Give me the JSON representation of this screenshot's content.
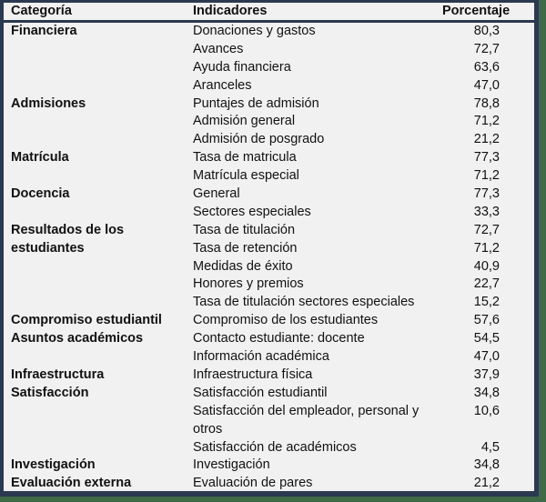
{
  "table": {
    "headers": {
      "category": "Categoría",
      "indicator": "Indicadores",
      "percentage": "Porcentaje"
    },
    "rows": [
      {
        "category": "Financiera",
        "indicator": "Donaciones y gastos",
        "percentage": "80,3"
      },
      {
        "category": "",
        "indicator": "Avances",
        "percentage": "72,7"
      },
      {
        "category": "",
        "indicator": "Ayuda financiera",
        "percentage": "63,6"
      },
      {
        "category": "",
        "indicator": "Aranceles",
        "percentage": "47,0"
      },
      {
        "category": "Admisiones",
        "indicator": "Puntajes de admisión",
        "percentage": "78,8"
      },
      {
        "category": "",
        "indicator": "Admisión general",
        "percentage": "71,2"
      },
      {
        "category": "",
        "indicator": "Admisión de posgrado",
        "percentage": "21,2"
      },
      {
        "category": "Matrícula",
        "indicator": "Tasa de matricula",
        "percentage": "77,3"
      },
      {
        "category": "",
        "indicator": "Matrícula especial",
        "percentage": "71,2"
      },
      {
        "category": "Docencia",
        "indicator": "General",
        "percentage": "77,3"
      },
      {
        "category": "",
        "indicator": "Sectores especiales",
        "percentage": "33,3"
      },
      {
        "category": "Resultados de los",
        "indicator": "Tasa de titulación",
        "percentage": "72,7"
      },
      {
        "category": "estudiantes",
        "indicator": "Tasa de retención",
        "percentage": "71,2"
      },
      {
        "category": "",
        "indicator": "Medidas de éxito",
        "percentage": "40,9"
      },
      {
        "category": "",
        "indicator": "Honores y premios",
        "percentage": "22,7"
      },
      {
        "category": "",
        "indicator": "Tasa de titulación sectores especiales",
        "percentage": "15,2"
      },
      {
        "category": "Compromiso estudiantil",
        "indicator": "Compromiso de los estudiantes",
        "percentage": "57,6"
      },
      {
        "category": "Asuntos académicos",
        "indicator": "Contacto estudiante: docente",
        "percentage": "54,5"
      },
      {
        "category": "",
        "indicator": "Información académica",
        "percentage": "47,0"
      },
      {
        "category": "Infraestructura",
        "indicator": "Infraestructura física",
        "percentage": "37,9"
      },
      {
        "category": "Satisfacción",
        "indicator": "Satisfacción estudiantil",
        "percentage": "34,8"
      },
      {
        "category": "",
        "indicator": "Satisfacción del empleador, personal y otros",
        "percentage": "10,6",
        "wrap": true
      },
      {
        "category": "",
        "indicator": "Satisfacción de académicos",
        "percentage": "4,5"
      },
      {
        "category": "Investigación",
        "indicator": "Investigación",
        "percentage": "34,8"
      },
      {
        "category": "Evaluación externa",
        "indicator": "Evaluación de pares",
        "percentage": "21,2"
      }
    ]
  },
  "colors": {
    "panel_bg": "#f1f1f1",
    "frame": "#2b3950",
    "background": "#3e6a45"
  }
}
